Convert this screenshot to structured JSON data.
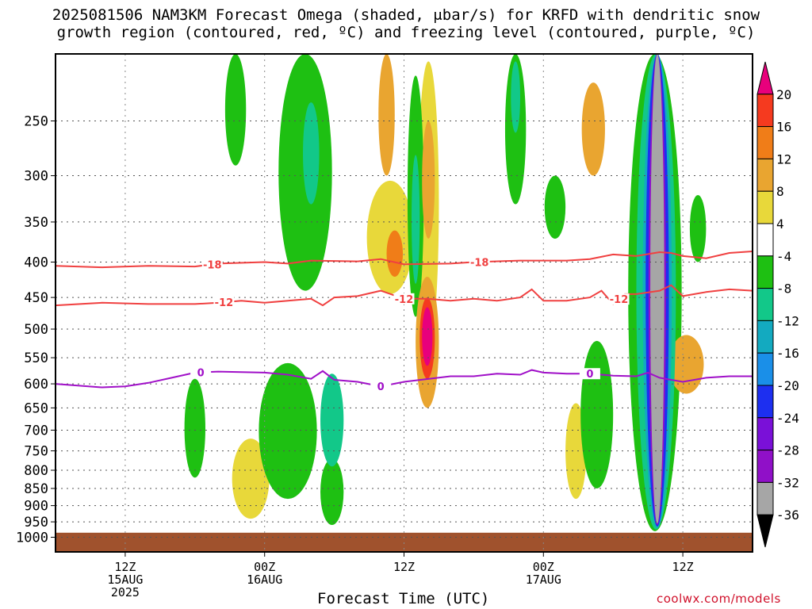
{
  "title_line1": "2025081506 NAM3KM Forecast Omega (shaded, μbar/s) for KRFD with dendritic snow",
  "title_line2": "growth region (contoured, red, ºC) and freezing level (contoured, purple, ºC)",
  "credit": "coolwx.com/models",
  "chart_data": {
    "type": "heatmap",
    "title": "2025081506 NAM3KM Forecast Omega (shaded, μbar/s) for KRFD with dendritic snow growth region (contoured, red, ºC) and freezing level (contoured, purple, ºC)",
    "xlabel": "Forecast Time (UTC)",
    "ylabel": "",
    "x_range_hours": [
      0,
      60
    ],
    "x_ticks": [
      {
        "hour": 6,
        "label": "12Z",
        "sub1": "15AUG",
        "sub2": "2025"
      },
      {
        "hour": 18,
        "label": "00Z",
        "sub1": "16AUG",
        "sub2": ""
      },
      {
        "hour": 30,
        "label": "12Z",
        "sub1": "",
        "sub2": ""
      },
      {
        "hour": 42,
        "label": "00Z",
        "sub1": "17AUG",
        "sub2": ""
      },
      {
        "hour": 54,
        "label": "12Z",
        "sub1": "",
        "sub2": ""
      }
    ],
    "y_axis": "pressure (hPa), log scale, reversed",
    "y_range": [
      1050,
      200
    ],
    "y_ticks": [
      250,
      300,
      350,
      400,
      450,
      500,
      550,
      600,
      650,
      700,
      750,
      800,
      850,
      900,
      950,
      1000
    ],
    "grid": "dotted",
    "ground_pressure": 985,
    "colorbar": {
      "boundaries": [
        20,
        16,
        12,
        8,
        4,
        -4,
        -8,
        -12,
        -16,
        -20,
        -24,
        -28,
        -32,
        -36
      ],
      "colors": [
        "#e8007c",
        "#f53a1f",
        "#f07d18",
        "#e9a530",
        "#e8d83a",
        "#ffffff",
        "#1ec012",
        "#12c889",
        "#13aac0",
        "#1a8fe8",
        "#1d2ff0",
        "#7a10d8",
        "#9010c8",
        "#a6a6a6",
        "#000000"
      ]
    },
    "contours": [
      {
        "name": "-18",
        "color": "#f04040",
        "label_points": [
          [
            13.5,
            "-18"
          ],
          [
            36.5,
            "-18"
          ]
        ],
        "points": [
          [
            0,
            405
          ],
          [
            4,
            407
          ],
          [
            8,
            405
          ],
          [
            12,
            406
          ],
          [
            14,
            402
          ],
          [
            18,
            400
          ],
          [
            20,
            402
          ],
          [
            22,
            398
          ],
          [
            26,
            399
          ],
          [
            28,
            396
          ],
          [
            30,
            403
          ],
          [
            34,
            402
          ],
          [
            36,
            400
          ],
          [
            40,
            398
          ],
          [
            44,
            398
          ],
          [
            46,
            396
          ],
          [
            48,
            390
          ],
          [
            50,
            392
          ],
          [
            52,
            387
          ],
          [
            53,
            388
          ],
          [
            54,
            392
          ],
          [
            56,
            395
          ],
          [
            58,
            388
          ],
          [
            60,
            386
          ]
        ]
      },
      {
        "name": "-12",
        "color": "#f04040",
        "label_points": [
          [
            14.5,
            "-12"
          ],
          [
            30,
            "-12"
          ],
          [
            48.5,
            "-12"
          ]
        ],
        "points": [
          [
            0,
            462
          ],
          [
            4,
            458
          ],
          [
            8,
            460
          ],
          [
            12,
            460
          ],
          [
            14,
            458
          ],
          [
            16,
            455
          ],
          [
            18,
            458
          ],
          [
            20,
            455
          ],
          [
            22,
            452
          ],
          [
            23,
            462
          ],
          [
            24,
            450
          ],
          [
            26,
            448
          ],
          [
            28,
            440
          ],
          [
            30,
            452
          ],
          [
            32,
            452
          ],
          [
            34,
            455
          ],
          [
            36,
            452
          ],
          [
            38,
            455
          ],
          [
            40,
            450
          ],
          [
            41,
            438
          ],
          [
            42,
            455
          ],
          [
            44,
            455
          ],
          [
            46,
            450
          ],
          [
            47,
            440
          ],
          [
            48,
            460
          ],
          [
            49,
            445
          ],
          [
            50,
            445
          ],
          [
            52,
            440
          ],
          [
            53,
            432
          ],
          [
            54,
            448
          ],
          [
            56,
            442
          ],
          [
            58,
            438
          ],
          [
            60,
            440
          ]
        ]
      },
      {
        "name": "0",
        "color": "#a010c8",
        "label_points": [
          [
            12.5,
            "0"
          ],
          [
            28,
            "0"
          ],
          [
            46,
            "0"
          ]
        ],
        "points": [
          [
            0,
            600
          ],
          [
            4,
            607
          ],
          [
            6,
            605
          ],
          [
            8,
            598
          ],
          [
            10,
            588
          ],
          [
            12,
            578
          ],
          [
            14,
            576
          ],
          [
            18,
            578
          ],
          [
            20,
            582
          ],
          [
            22,
            590
          ],
          [
            23,
            575
          ],
          [
            24,
            592
          ],
          [
            26,
            596
          ],
          [
            28,
            605
          ],
          [
            30,
            596
          ],
          [
            34,
            585
          ],
          [
            36,
            585
          ],
          [
            38,
            580
          ],
          [
            40,
            582
          ],
          [
            41,
            573
          ],
          [
            42,
            578
          ],
          [
            44,
            580
          ],
          [
            46,
            580
          ],
          [
            48,
            584
          ],
          [
            50,
            585
          ],
          [
            51,
            578
          ],
          [
            52,
            588
          ],
          [
            53,
            592
          ],
          [
            54,
            596
          ],
          [
            56,
            588
          ],
          [
            58,
            585
          ],
          [
            60,
            585
          ]
        ]
      }
    ],
    "omega_features": [
      {
        "value": -8,
        "t": 15.5,
        "p1": 200,
        "p2": 290,
        "w": 0.9
      },
      {
        "value": -8,
        "t": 21.5,
        "p1": 200,
        "p2": 440,
        "w": 2.3
      },
      {
        "value": -12,
        "t": 22.0,
        "p1": 235,
        "p2": 330,
        "w": 0.7
      },
      {
        "value": 8,
        "t": 28.5,
        "p1": 200,
        "p2": 300,
        "w": 0.7
      },
      {
        "value": 4,
        "t": 28.8,
        "p1": 305,
        "p2": 445,
        "w": 2.0
      },
      {
        "value": 12,
        "t": 29.2,
        "p1": 360,
        "p2": 420,
        "w": 0.7
      },
      {
        "value": -8,
        "t": 31.0,
        "p1": 215,
        "p2": 480,
        "w": 0.7
      },
      {
        "value": -12,
        "t": 31.0,
        "p1": 280,
        "p2": 430,
        "w": 0.35
      },
      {
        "value": 4,
        "t": 32.1,
        "p1": 205,
        "p2": 530,
        "w": 0.9
      },
      {
        "value": 8,
        "t": 32.1,
        "p1": 250,
        "p2": 370,
        "w": 0.55
      },
      {
        "value": 8,
        "t": 32.0,
        "p1": 420,
        "p2": 650,
        "w": 1.0
      },
      {
        "value": 16,
        "t": 32.0,
        "p1": 450,
        "p2": 590,
        "w": 0.65
      },
      {
        "value": 20,
        "t": 32.0,
        "p1": 465,
        "p2": 565,
        "w": 0.45
      },
      {
        "value": -8,
        "t": 39.6,
        "p1": 200,
        "p2": 330,
        "w": 0.9
      },
      {
        "value": -12,
        "t": 39.6,
        "p1": 205,
        "p2": 260,
        "w": 0.4
      },
      {
        "value": 8,
        "t": 46.3,
        "p1": 220,
        "p2": 300,
        "w": 1.0
      },
      {
        "value": -8,
        "t": 43.0,
        "p1": 300,
        "p2": 370,
        "w": 0.9
      },
      {
        "value": -8,
        "t": 51.6,
        "p1": 200,
        "p2": 980,
        "w": 2.3
      },
      {
        "value": -12,
        "t": 51.7,
        "p1": 200,
        "p2": 975,
        "w": 1.7
      },
      {
        "value": -16,
        "t": 51.8,
        "p1": 200,
        "p2": 970,
        "w": 1.25
      },
      {
        "value": -24,
        "t": 51.8,
        "p1": 200,
        "p2": 965,
        "w": 1.0
      },
      {
        "value": -32,
        "t": 51.8,
        "p1": 200,
        "p2": 960,
        "w": 0.75
      },
      {
        "value": -36,
        "t": 51.8,
        "p1": 200,
        "p2": 955,
        "w": 0.6
      },
      {
        "value": -8,
        "t": 55.3,
        "p1": 320,
        "p2": 400,
        "w": 0.7
      },
      {
        "value": 8,
        "t": 54.3,
        "p1": 510,
        "p2": 620,
        "w": 1.5
      },
      {
        "value": -8,
        "t": 20.0,
        "p1": 560,
        "p2": 880,
        "w": 2.5
      },
      {
        "value": -12,
        "t": 23.8,
        "p1": 580,
        "p2": 790,
        "w": 1.0
      },
      {
        "value": -8,
        "t": 12.0,
        "p1": 590,
        "p2": 820,
        "w": 0.9
      },
      {
        "value": 4,
        "t": 16.8,
        "p1": 720,
        "p2": 940,
        "w": 1.6
      },
      {
        "value": -8,
        "t": 23.8,
        "p1": 770,
        "p2": 960,
        "w": 1.0
      },
      {
        "value": 4,
        "t": 44.8,
        "p1": 640,
        "p2": 880,
        "w": 0.9
      },
      {
        "value": -8,
        "t": 46.6,
        "p1": 520,
        "p2": 850,
        "w": 1.4
      }
    ]
  }
}
